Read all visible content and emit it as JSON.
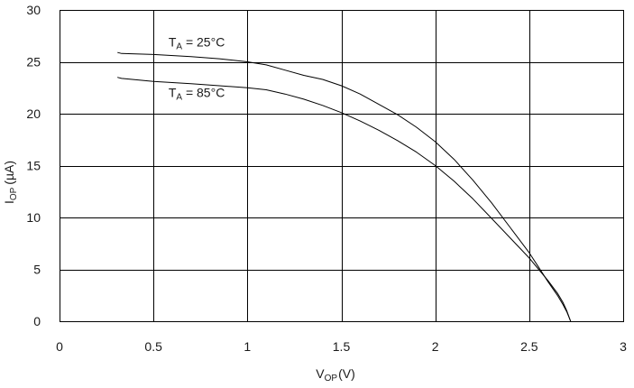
{
  "chart_data": {
    "type": "line",
    "title": "",
    "xlabel": {
      "main": "V",
      "sub": "OP",
      "unit": "(V)"
    },
    "ylabel": {
      "main": "I",
      "sub": "OP",
      "unit": "(µA)"
    },
    "xlim": [
      0,
      3
    ],
    "ylim": [
      0,
      30
    ],
    "xticks": [
      {
        "value": 0,
        "label": "0"
      },
      {
        "value": 0.5,
        "label": "0.5"
      },
      {
        "value": 1,
        "label": "1"
      },
      {
        "value": 1.5,
        "label": "1.5"
      },
      {
        "value": 2,
        "label": "2"
      },
      {
        "value": 2.5,
        "label": "2.5"
      },
      {
        "value": 3,
        "label": "3"
      }
    ],
    "yticks": [
      {
        "value": 0,
        "label": "0"
      },
      {
        "value": 5,
        "label": "5"
      },
      {
        "value": 10,
        "label": "10"
      },
      {
        "value": 15,
        "label": "15"
      },
      {
        "value": 20,
        "label": "20"
      },
      {
        "value": 25,
        "label": "25"
      },
      {
        "value": 30,
        "label": "30"
      }
    ],
    "grid": true,
    "legend": "none",
    "series": [
      {
        "label": {
          "main": "T",
          "sub": "A",
          "rest": " = 25°C"
        },
        "label_at": {
          "x": 0.58,
          "y": 26.5
        },
        "x": [
          0.31,
          0.33,
          0.5,
          0.7,
          0.85,
          1.0,
          1.1,
          1.2,
          1.3,
          1.4,
          1.5,
          1.6,
          1.7,
          1.8,
          1.9,
          2.0,
          2.1,
          2.2,
          2.3,
          2.4,
          2.5,
          2.55,
          2.6,
          2.65,
          2.68,
          2.7,
          2.72
        ],
        "y": [
          25.9,
          25.8,
          25.7,
          25.5,
          25.3,
          25.0,
          24.7,
          24.2,
          23.7,
          23.3,
          22.7,
          21.9,
          20.9,
          19.9,
          18.7,
          17.3,
          15.6,
          13.6,
          11.4,
          9.0,
          6.6,
          5.2,
          3.8,
          2.5,
          1.6,
          0.9,
          0.0
        ]
      },
      {
        "label": {
          "main": "T",
          "sub": "A",
          "rest": " = 85°C"
        },
        "label_at": {
          "x": 0.58,
          "y": 21.6
        },
        "x": [
          0.31,
          0.33,
          0.5,
          0.7,
          0.85,
          1.0,
          1.1,
          1.2,
          1.3,
          1.4,
          1.5,
          1.6,
          1.7,
          1.8,
          1.9,
          2.0,
          2.1,
          2.2,
          2.3,
          2.4,
          2.5,
          2.55,
          2.6,
          2.65,
          2.68,
          2.7,
          2.72
        ],
        "y": [
          23.5,
          23.4,
          23.1,
          22.9,
          22.7,
          22.5,
          22.3,
          21.9,
          21.4,
          20.8,
          20.1,
          19.3,
          18.4,
          17.4,
          16.3,
          15.0,
          13.5,
          11.8,
          9.9,
          8.0,
          6.1,
          5.0,
          3.9,
          2.7,
          1.8,
          1.0,
          0.0
        ]
      }
    ]
  }
}
